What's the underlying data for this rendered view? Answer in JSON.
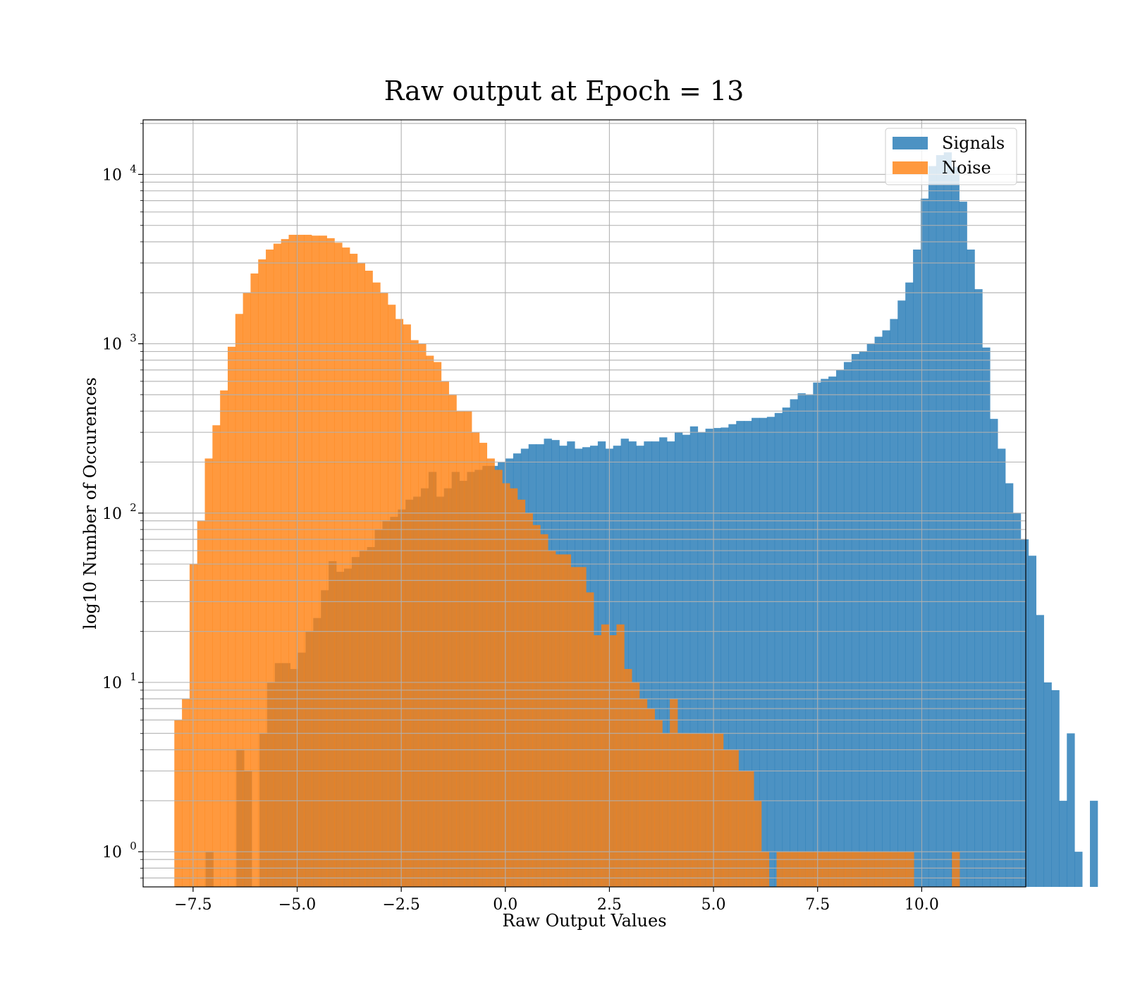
{
  "chart_data": {
    "type": "histogram",
    "title": "Raw output at Epoch = 13",
    "xlabel": "Raw Output Values",
    "ylabel": "log10 Number of Occurences",
    "xlim": [
      -8.7,
      12.5
    ],
    "ylim": [
      0.62,
      21000
    ],
    "yscale": "log",
    "grid": true,
    "legend": "top-right",
    "xticks": [
      {
        "value": -7.5,
        "label": "−7.5"
      },
      {
        "value": -5.0,
        "label": "−5.0"
      },
      {
        "value": -2.5,
        "label": "−2.5"
      },
      {
        "value": 0.0,
        "label": "0.0"
      },
      {
        "value": 2.5,
        "label": "2.5"
      },
      {
        "value": 5.0,
        "label": "5.0"
      },
      {
        "value": 7.5,
        "label": "7.5"
      },
      {
        "value": 10.0,
        "label": "10.0"
      }
    ],
    "yticks": [
      {
        "value": 1,
        "base": "10",
        "exp": "0"
      },
      {
        "value": 10,
        "base": "10",
        "exp": "1"
      },
      {
        "value": 100,
        "base": "10",
        "exp": "2"
      },
      {
        "value": 1000,
        "base": "10",
        "exp": "3"
      },
      {
        "value": 10000,
        "base": "10",
        "exp": "4"
      }
    ],
    "series": [
      {
        "name": "Signals",
        "color": "#1f77b4",
        "opacity": 0.8,
        "bin_start": -7.2,
        "bin_width": 0.1847,
        "values": [
          1,
          0,
          0,
          0,
          4,
          3,
          0,
          5,
          10,
          13,
          13,
          12,
          15,
          20,
          24,
          35,
          52,
          45,
          47,
          55,
          60,
          63,
          80,
          90,
          95,
          105,
          120,
          125,
          140,
          175,
          125,
          140,
          175,
          155,
          175,
          180,
          190,
          190,
          200,
          210,
          225,
          240,
          255,
          255,
          275,
          270,
          250,
          265,
          240,
          245,
          250,
          265,
          240,
          250,
          275,
          265,
          250,
          265,
          265,
          280,
          265,
          300,
          290,
          325,
          300,
          315,
          318,
          320,
          335,
          350,
          350,
          365,
          365,
          370,
          390,
          420,
          470,
          510,
          500,
          590,
          620,
          640,
          700,
          780,
          870,
          900,
          1000,
          1100,
          1200,
          1400,
          1800,
          2300,
          3600,
          7200,
          11200,
          13000,
          13500,
          11100,
          6900,
          3600,
          2100,
          950,
          360,
          240,
          150,
          100,
          70,
          56,
          25,
          10,
          9,
          2,
          5,
          1,
          0,
          2
        ]
      },
      {
        "name": "Noise",
        "color": "#ff7f0e",
        "opacity": 0.8,
        "bin_start": -7.95,
        "bin_width": 0.1831,
        "values": [
          6,
          8,
          50,
          90,
          210,
          330,
          530,
          960,
          1500,
          2000,
          2600,
          3150,
          3600,
          3900,
          4150,
          4400,
          4400,
          4400,
          4350,
          4350,
          4200,
          3950,
          3700,
          3400,
          3000,
          2700,
          2300,
          2000,
          1700,
          1400,
          1300,
          1050,
          1000,
          850,
          780,
          600,
          500,
          400,
          400,
          300,
          260,
          210,
          180,
          150,
          140,
          120,
          100,
          85,
          75,
          60,
          57,
          57,
          48,
          48,
          34,
          19,
          22,
          19,
          22,
          12,
          10,
          8,
          7,
          6,
          5,
          8,
          5,
          5,
          5,
          5,
          5,
          5,
          4,
          4,
          3,
          3,
          2,
          1,
          0,
          1,
          1,
          1,
          1,
          1,
          1,
          1,
          1,
          1,
          1,
          1,
          1,
          1,
          1,
          1,
          1,
          1,
          1,
          0,
          0,
          0,
          0,
          0,
          1
        ]
      }
    ]
  }
}
